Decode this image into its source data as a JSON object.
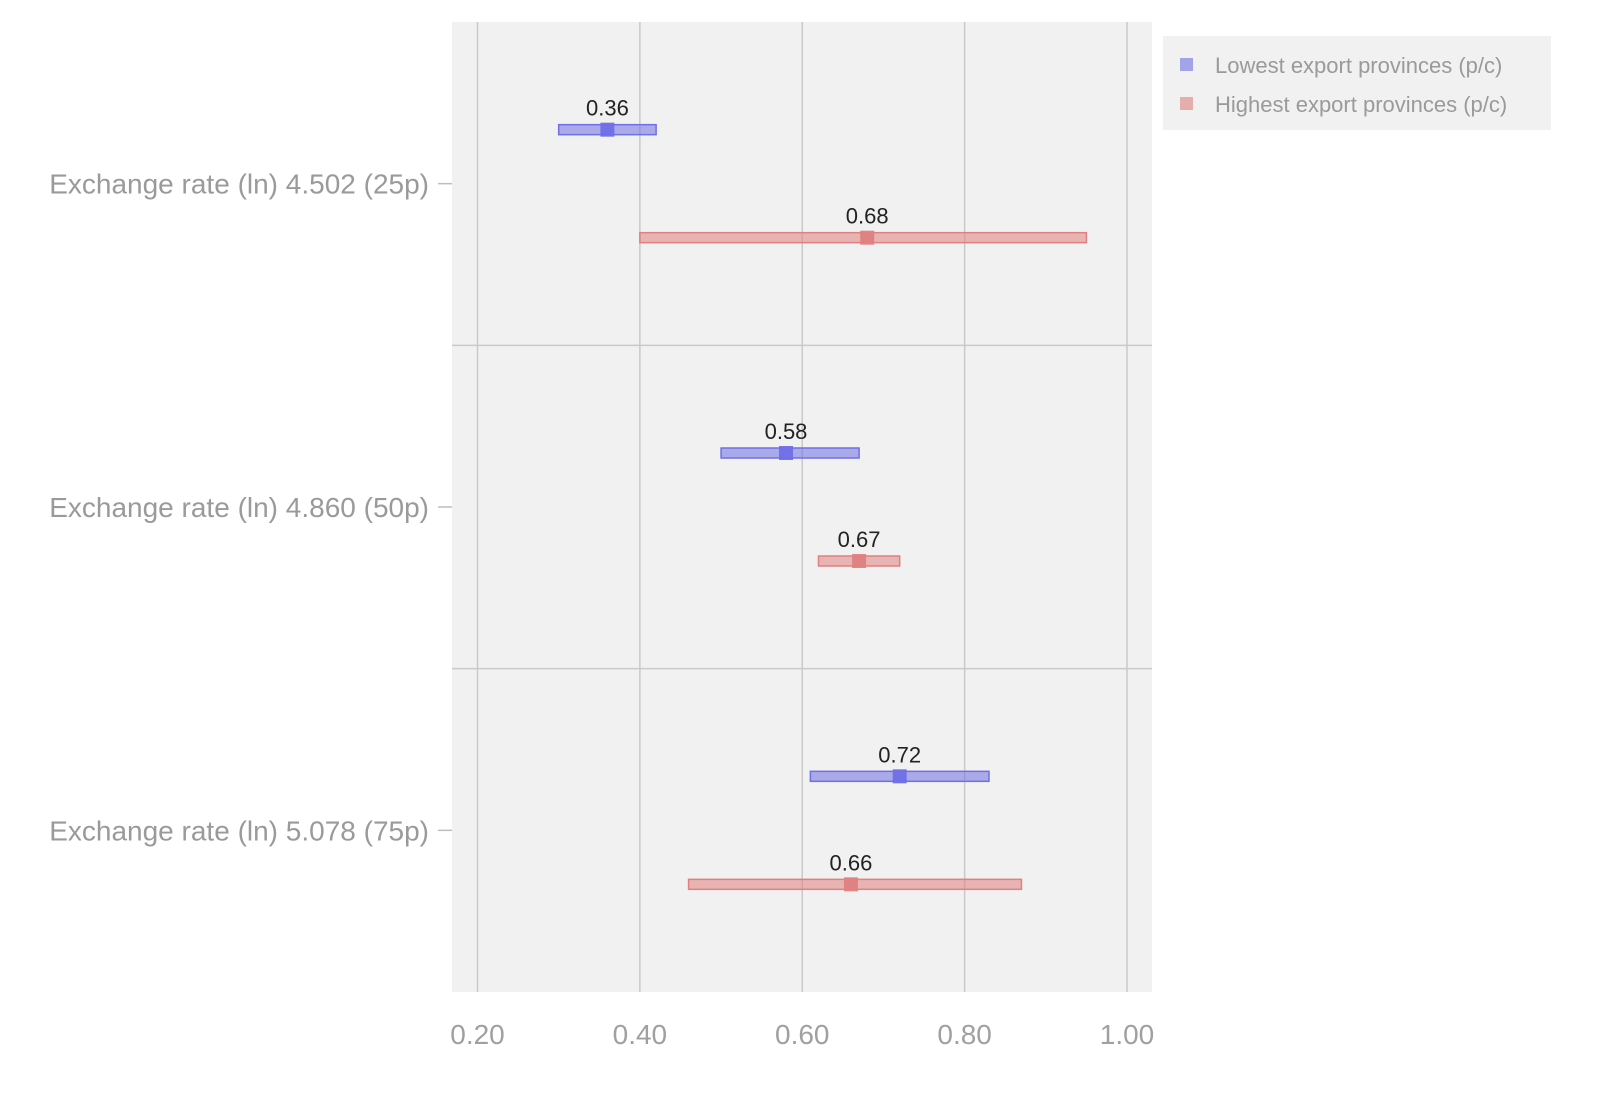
{
  "chart_data": {
    "type": "scatter",
    "subtype": "point-with-interval",
    "title": "",
    "xlabel": "",
    "ylabel": "",
    "xlim": [
      0.17,
      1.03
    ],
    "x_ticks": [
      0.2,
      0.4,
      0.6,
      0.8,
      1.0
    ],
    "x_tick_labels": [
      "0.20",
      "0.40",
      "0.60",
      "0.80",
      "1.00"
    ],
    "grid": true,
    "legend_position": "top-right",
    "categories": [
      "Exchange rate (ln) 4.502 (25p)",
      "Exchange rate (ln) 4.860 (50p)",
      "Exchange rate (ln) 5.078 (75p)"
    ],
    "series": [
      {
        "name": "Lowest export provinces (p/c)",
        "color": "#6f6fe6",
        "values": [
          0.36,
          0.58,
          0.72
        ],
        "labels": [
          "0.36",
          "0.58",
          "0.72"
        ],
        "lower": [
          0.3,
          0.5,
          0.61
        ],
        "upper": [
          0.42,
          0.67,
          0.83
        ]
      },
      {
        "name": "Highest export provinces (p/c)",
        "color": "#e08080",
        "values": [
          0.68,
          0.67,
          0.66
        ],
        "labels": [
          "0.68",
          "0.67",
          "0.66"
        ],
        "lower": [
          0.4,
          0.62,
          0.46
        ],
        "upper": [
          0.95,
          0.72,
          0.87
        ]
      }
    ]
  }
}
